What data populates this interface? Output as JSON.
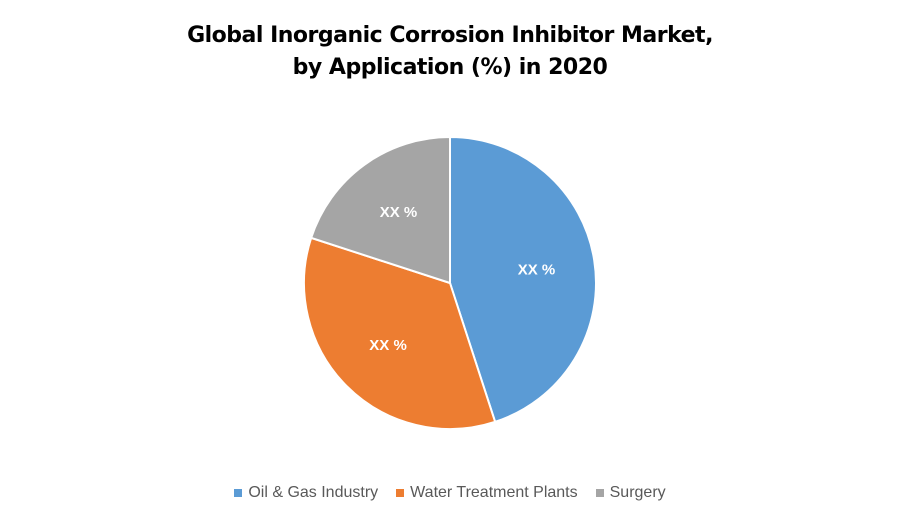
{
  "chart_data": {
    "type": "pie",
    "title_lines": [
      "Global Inorganic Corrosion Inhibitor Market,",
      "by Application (%) in 2020"
    ],
    "categories": [
      "Oil & Gas Industry",
      "Water Treatment Plants",
      "Surgery"
    ],
    "values": [
      45,
      35,
      20
    ],
    "data_labels": [
      "XX %",
      "XX %",
      "XX %"
    ],
    "colors": [
      "#5B9BD5",
      "#ED7D31",
      "#A5A5A5"
    ],
    "start_angle": "12 o'clock, clockwise",
    "legend_position": "bottom"
  }
}
